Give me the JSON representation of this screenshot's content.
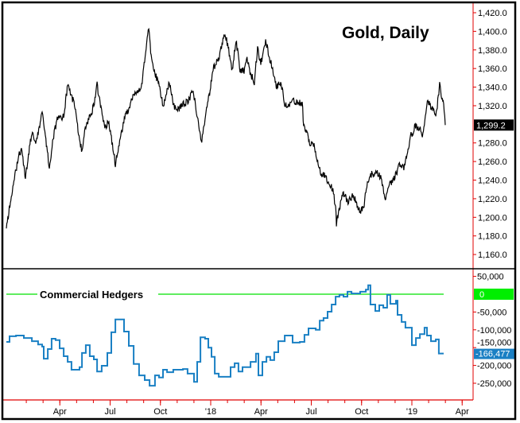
{
  "chart_data": [
    {
      "type": "line",
      "title": "Gold, Daily",
      "xlabel": "",
      "ylabel": "",
      "x_units": "fractional year",
      "ylim": [
        1150,
        1425
      ],
      "y_ticks": [
        "1,420.0",
        "1,400.0",
        "1,380.0",
        "1,360.0",
        "1,340.0",
        "1,320.0",
        "1,280.0",
        "1,260.0",
        "1,240.0",
        "1,220.0",
        "1,200.0",
        "1,180.0",
        "1,160.0"
      ],
      "y_tick_values": [
        1420,
        1400,
        1380,
        1360,
        1340,
        1320,
        1280,
        1260,
        1240,
        1220,
        1200,
        1180,
        1160
      ],
      "last_value_label": "1,299.2",
      "last_value": 1299.2,
      "grid": false,
      "color": "#000000",
      "series": [
        {
          "name": "Gold",
          "points": [
            [
              2016.984,
              1188
            ],
            [
              2017.004,
              1217
            ],
            [
              2017.024,
              1240
            ],
            [
              2017.043,
              1265
            ],
            [
              2017.059,
              1274
            ],
            [
              2017.079,
              1243
            ],
            [
              2017.099,
              1274
            ],
            [
              2017.111,
              1291
            ],
            [
              2017.13,
              1282
            ],
            [
              2017.15,
              1297
            ],
            [
              2017.162,
              1317
            ],
            [
              2017.178,
              1288
            ],
            [
              2017.198,
              1254
            ],
            [
              2017.217,
              1286
            ],
            [
              2017.237,
              1305
            ],
            [
              2017.269,
              1308
            ],
            [
              2017.289,
              1342
            ],
            [
              2017.308,
              1331
            ],
            [
              2017.328,
              1317
            ],
            [
              2017.348,
              1282
            ],
            [
              2017.36,
              1271
            ],
            [
              2017.379,
              1299
            ],
            [
              2017.399,
              1308
            ],
            [
              2017.419,
              1320
            ],
            [
              2017.435,
              1342
            ],
            [
              2017.455,
              1317
            ],
            [
              2017.474,
              1297
            ],
            [
              2017.494,
              1303
            ],
            [
              2017.514,
              1274
            ],
            [
              2017.526,
              1257
            ],
            [
              2017.545,
              1280
            ],
            [
              2017.573,
              1308
            ],
            [
              2017.593,
              1317
            ],
            [
              2017.613,
              1331
            ],
            [
              2017.632,
              1334
            ],
            [
              2017.652,
              1337
            ],
            [
              2017.664,
              1354
            ],
            [
              2017.684,
              1391
            ],
            [
              2017.692,
              1404
            ],
            [
              2017.704,
              1374
            ],
            [
              2017.723,
              1354
            ],
            [
              2017.739,
              1346
            ],
            [
              2017.763,
              1320
            ],
            [
              2017.783,
              1337
            ],
            [
              2017.794,
              1346
            ],
            [
              2017.81,
              1325
            ],
            [
              2017.83,
              1314
            ],
            [
              2017.854,
              1320
            ],
            [
              2017.889,
              1325
            ],
            [
              2017.913,
              1337
            ],
            [
              2017.929,
              1314
            ],
            [
              2017.941,
              1297
            ],
            [
              2017.953,
              1280
            ],
            [
              2017.972,
              1305
            ],
            [
              2017.992,
              1331
            ],
            [
              2018.012,
              1359
            ],
            [
              2018.04,
              1371
            ],
            [
              2018.051,
              1382
            ],
            [
              2018.071,
              1399
            ],
            [
              2018.087,
              1382
            ],
            [
              2018.107,
              1359
            ],
            [
              2018.126,
              1391
            ],
            [
              2018.146,
              1359
            ],
            [
              2018.166,
              1357
            ],
            [
              2018.178,
              1371
            ],
            [
              2018.198,
              1354
            ],
            [
              2018.217,
              1346
            ],
            [
              2018.233,
              1382
            ],
            [
              2018.249,
              1365
            ],
            [
              2018.273,
              1391
            ],
            [
              2018.289,
              1374
            ],
            [
              2018.308,
              1359
            ],
            [
              2018.328,
              1340
            ],
            [
              2018.348,
              1346
            ],
            [
              2018.368,
              1323
            ],
            [
              2018.387,
              1320
            ],
            [
              2018.407,
              1325
            ],
            [
              2018.435,
              1323
            ],
            [
              2018.455,
              1323
            ],
            [
              2018.462,
              1299
            ],
            [
              2018.482,
              1288
            ],
            [
              2018.494,
              1277
            ],
            [
              2018.514,
              1280
            ],
            [
              2018.526,
              1265
            ],
            [
              2018.545,
              1248
            ],
            [
              2018.565,
              1246
            ],
            [
              2018.585,
              1237
            ],
            [
              2018.605,
              1231
            ],
            [
              2018.621,
              1211
            ],
            [
              2018.625,
              1194
            ],
            [
              2018.64,
              1211
            ],
            [
              2018.66,
              1226
            ],
            [
              2018.68,
              1217
            ],
            [
              2018.704,
              1223
            ],
            [
              2018.723,
              1217
            ],
            [
              2018.743,
              1205
            ],
            [
              2018.763,
              1214
            ],
            [
              2018.779,
              1240
            ],
            [
              2018.798,
              1246
            ],
            [
              2018.818,
              1248
            ],
            [
              2018.838,
              1246
            ],
            [
              2018.85,
              1240
            ],
            [
              2018.87,
              1217
            ],
            [
              2018.881,
              1234
            ],
            [
              2018.901,
              1237
            ],
            [
              2018.921,
              1246
            ],
            [
              2018.941,
              1257
            ],
            [
              2018.96,
              1254
            ],
            [
              2018.976,
              1269
            ],
            [
              2018.996,
              1288
            ],
            [
              2019.016,
              1297
            ],
            [
              2019.036,
              1297
            ],
            [
              2019.055,
              1288
            ],
            [
              2019.067,
              1308
            ],
            [
              2019.079,
              1325
            ],
            [
              2019.099,
              1317
            ],
            [
              2019.119,
              1311
            ],
            [
              2019.134,
              1331
            ],
            [
              2019.138,
              1348
            ],
            [
              2019.146,
              1331
            ],
            [
              2019.158,
              1325
            ],
            [
              2019.166,
              1299.2
            ]
          ]
        }
      ]
    },
    {
      "type": "line",
      "title": "Commercial Hedgers",
      "xlabel": "",
      "ylabel": "",
      "step": true,
      "ylim": [
        -285000,
        62000
      ],
      "y_ticks": [
        "50,000",
        "-50,000",
        "-100,000",
        "-150,000",
        "-200,000",
        "-250,000"
      ],
      "y_tick_values": [
        50000,
        -50000,
        -100000,
        -150000,
        -200000,
        -250000
      ],
      "zero_label": "0",
      "last_value_label": "-166,477",
      "last_value": -166477,
      "color": "#1a80c4",
      "zero_line_color": "#00e000",
      "series": [
        {
          "name": "Commercial Hedgers",
          "points": [
            [
              2016.984,
              -134000
            ],
            [
              2017.0,
              -118000
            ],
            [
              2017.032,
              -116000
            ],
            [
              2017.071,
              -123000
            ],
            [
              2017.111,
              -132000
            ],
            [
              2017.142,
              -141000
            ],
            [
              2017.162,
              -147000
            ],
            [
              2017.17,
              -181000
            ],
            [
              2017.19,
              -154000
            ],
            [
              2017.209,
              -125000
            ],
            [
              2017.229,
              -129000
            ],
            [
              2017.249,
              -152000
            ],
            [
              2017.269,
              -174000
            ],
            [
              2017.289,
              -190000
            ],
            [
              2017.308,
              -212000
            ],
            [
              2017.348,
              -205000
            ],
            [
              2017.36,
              -165000
            ],
            [
              2017.379,
              -143000
            ],
            [
              2017.399,
              -174000
            ],
            [
              2017.419,
              -183000
            ],
            [
              2017.435,
              -217000
            ],
            [
              2017.458,
              -201000
            ],
            [
              2017.486,
              -165000
            ],
            [
              2017.506,
              -107000
            ],
            [
              2017.526,
              -71000
            ],
            [
              2017.553,
              -71000
            ],
            [
              2017.569,
              -105000
            ],
            [
              2017.593,
              -145000
            ],
            [
              2017.617,
              -196000
            ],
            [
              2017.644,
              -228000
            ],
            [
              2017.672,
              -241000
            ],
            [
              2017.696,
              -257000
            ],
            [
              2017.723,
              -228000
            ],
            [
              2017.743,
              -234000
            ],
            [
              2017.763,
              -212000
            ],
            [
              2017.783,
              -219000
            ],
            [
              2017.814,
              -212000
            ],
            [
              2017.862,
              -210000
            ],
            [
              2017.885,
              -223000
            ],
            [
              2017.917,
              -246000
            ],
            [
              2017.933,
              -190000
            ],
            [
              2017.949,
              -121000
            ],
            [
              2017.972,
              -125000
            ],
            [
              2017.988,
              -150000
            ],
            [
              2018.004,
              -176000
            ],
            [
              2018.02,
              -223000
            ],
            [
              2018.04,
              -232000
            ],
            [
              2018.079,
              -232000
            ],
            [
              2018.099,
              -205000
            ],
            [
              2018.119,
              -194000
            ],
            [
              2018.138,
              -217000
            ],
            [
              2018.158,
              -205000
            ],
            [
              2018.198,
              -190000
            ],
            [
              2018.225,
              -167000
            ],
            [
              2018.237,
              -228000
            ],
            [
              2018.257,
              -190000
            ],
            [
              2018.277,
              -176000
            ],
            [
              2018.296,
              -185000
            ],
            [
              2018.316,
              -163000
            ],
            [
              2018.336,
              -132000
            ],
            [
              2018.368,
              -116000
            ],
            [
              2018.407,
              -136000
            ],
            [
              2018.443,
              -134000
            ],
            [
              2018.466,
              -114000
            ],
            [
              2018.486,
              -96000
            ],
            [
              2018.522,
              -100000
            ],
            [
              2018.542,
              -74000
            ],
            [
              2018.561,
              -67000
            ],
            [
              2018.581,
              -49000
            ],
            [
              2018.601,
              -29000
            ],
            [
              2018.621,
              -7000
            ],
            [
              2018.64,
              -2000
            ],
            [
              2018.66,
              -7000
            ],
            [
              2018.68,
              7000
            ],
            [
              2018.7,
              2000
            ],
            [
              2018.731,
              2000
            ],
            [
              2018.743,
              7000
            ],
            [
              2018.771,
              13000
            ],
            [
              2018.783,
              25000
            ],
            [
              2018.794,
              -29000
            ],
            [
              2018.818,
              -47000
            ],
            [
              2018.838,
              -31000
            ],
            [
              2018.858,
              -38000
            ],
            [
              2018.877,
              -2000
            ],
            [
              2018.893,
              -27000
            ],
            [
              2018.921,
              -18000
            ],
            [
              2018.929,
              -58000
            ],
            [
              2018.949,
              -78000
            ],
            [
              2018.968,
              -94000
            ],
            [
              2019.0,
              -143000
            ],
            [
              2019.02,
              -123000
            ],
            [
              2019.04,
              -112000
            ],
            [
              2019.063,
              -94000
            ],
            [
              2019.075,
              -116000
            ],
            [
              2019.095,
              -132000
            ],
            [
              2019.119,
              -127000
            ],
            [
              2019.134,
              -166477
            ],
            [
              2019.158,
              -166477
            ]
          ]
        }
      ]
    }
  ],
  "x_axis": {
    "range": [
      2016.98,
      2019.35
    ],
    "tick_labels": [
      {
        "label": "Apr",
        "x": 2017.25
      },
      {
        "label": "Jul",
        "x": 2017.5
      },
      {
        "label": "Oct",
        "x": 2017.75
      },
      {
        "label": "'18",
        "x": 2018.0
      },
      {
        "label": "Apr",
        "x": 2018.25
      },
      {
        "label": "Jul",
        "x": 2018.5
      },
      {
        "label": "Oct",
        "x": 2018.75
      },
      {
        "label": "'19",
        "x": 2019.0
      },
      {
        "label": "Apr",
        "x": 2019.25
      }
    ]
  },
  "colors": {
    "axis": "#e00000",
    "frame": "#000000",
    "price_box": "#000000",
    "hedger_box": "#1a80c4",
    "zero_box": "#00ee00"
  }
}
